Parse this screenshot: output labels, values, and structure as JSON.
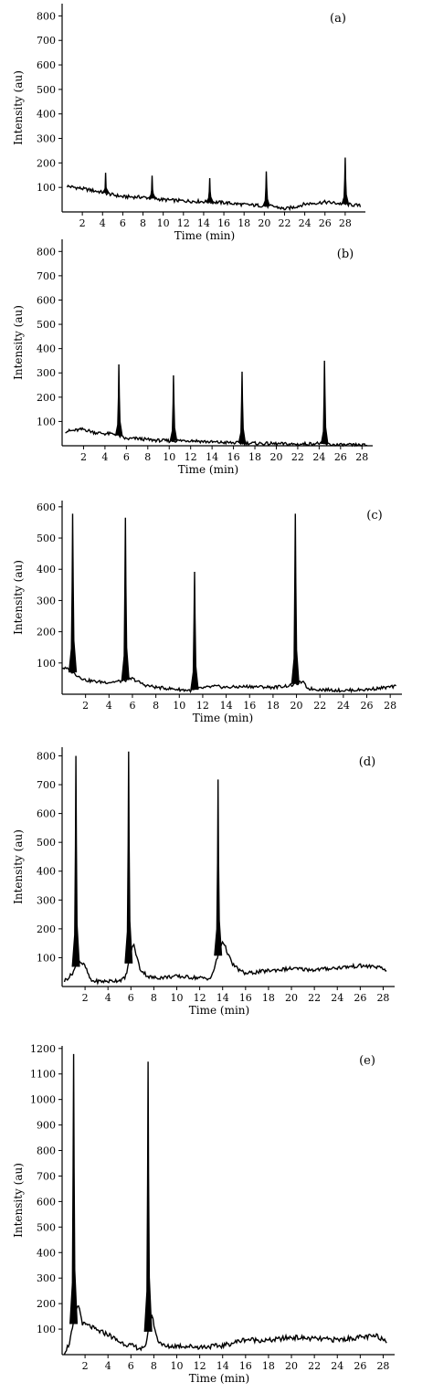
{
  "chart_data": [
    {
      "type": "line",
      "panel_label": "(a)",
      "xlabel": "Time (min)",
      "ylabel": "Intensity (au)",
      "xlim": [
        0,
        30
      ],
      "ylim": [
        0,
        850
      ],
      "xticks": [
        2,
        4,
        6,
        8,
        10,
        12,
        14,
        16,
        18,
        20,
        22,
        24,
        26,
        28
      ],
      "yticks": [
        100,
        200,
        300,
        400,
        500,
        600,
        700,
        800
      ],
      "baseline": [
        [
          0.5,
          105
        ],
        [
          2,
          95
        ],
        [
          4,
          80
        ],
        [
          5,
          70
        ],
        [
          6,
          62
        ],
        [
          8,
          60
        ],
        [
          9,
          55
        ],
        [
          10,
          50
        ],
        [
          12,
          45
        ],
        [
          14,
          42
        ],
        [
          16,
          38
        ],
        [
          18,
          30
        ],
        [
          20,
          25
        ],
        [
          21,
          22
        ],
        [
          22,
          12
        ],
        [
          23,
          20
        ],
        [
          24,
          32
        ],
        [
          26,
          40
        ],
        [
          28,
          32
        ],
        [
          29.5,
          25
        ]
      ],
      "peaks": [
        {
          "x": 4.3,
          "y": 160
        },
        {
          "x": 8.9,
          "y": 148
        },
        {
          "x": 14.6,
          "y": 138
        },
        {
          "x": 20.2,
          "y": 165
        },
        {
          "x": 28.0,
          "y": 222
        }
      ]
    },
    {
      "type": "line",
      "panel_label": "(b)",
      "xlabel": "Time (min)",
      "ylabel": "Intensity (au)",
      "xlim": [
        0,
        29
      ],
      "ylim": [
        0,
        850
      ],
      "xticks": [
        2,
        4,
        6,
        8,
        10,
        12,
        14,
        16,
        18,
        20,
        22,
        24,
        26,
        28
      ],
      "yticks": [
        100,
        200,
        300,
        400,
        500,
        600,
        700,
        800
      ],
      "baseline": [
        [
          0.3,
          60
        ],
        [
          1,
          62
        ],
        [
          2,
          68
        ],
        [
          3,
          55
        ],
        [
          4,
          50
        ],
        [
          5,
          48
        ],
        [
          6,
          28
        ],
        [
          7,
          30
        ],
        [
          8,
          25
        ],
        [
          9,
          22
        ],
        [
          10,
          20
        ],
        [
          12,
          22
        ],
        [
          14,
          15
        ],
        [
          16,
          12
        ],
        [
          18,
          10
        ],
        [
          20,
          8
        ],
        [
          22,
          6
        ],
        [
          24,
          10
        ],
        [
          25,
          5
        ],
        [
          26,
          3
        ],
        [
          28.5,
          2
        ]
      ],
      "peaks": [
        {
          "x": 5.3,
          "y": 335
        },
        {
          "x": 10.4,
          "y": 290
        },
        {
          "x": 16.8,
          "y": 305
        },
        {
          "x": 24.5,
          "y": 350
        }
      ]
    },
    {
      "type": "line",
      "panel_label": "(c)",
      "xlabel": "Time (min)",
      "ylabel": "Intensity (au)",
      "xlim": [
        0,
        29
      ],
      "ylim": [
        0,
        620
      ],
      "xticks": [
        2,
        4,
        6,
        8,
        10,
        12,
        14,
        16,
        18,
        20,
        22,
        24,
        26,
        28
      ],
      "yticks": [
        100,
        200,
        300,
        400,
        500,
        600
      ],
      "baseline": [
        [
          0,
          85
        ],
        [
          0.5,
          80
        ],
        [
          1.3,
          60
        ],
        [
          2,
          45
        ],
        [
          3,
          40
        ],
        [
          4,
          38
        ],
        [
          5,
          42
        ],
        [
          6,
          50
        ],
        [
          7,
          30
        ],
        [
          8,
          22
        ],
        [
          10,
          15
        ],
        [
          11,
          12
        ],
        [
          12,
          20
        ],
        [
          13,
          25
        ],
        [
          14,
          22
        ],
        [
          16,
          25
        ],
        [
          18,
          22
        ],
        [
          19.5,
          28
        ],
        [
          20.5,
          40
        ],
        [
          21,
          18
        ],
        [
          22,
          15
        ],
        [
          24,
          12
        ],
        [
          26,
          15
        ],
        [
          28.5,
          25
        ]
      ],
      "peaks": [
        {
          "x": 0.9,
          "y": 578
        },
        {
          "x": 5.4,
          "y": 565
        },
        {
          "x": 11.3,
          "y": 392
        },
        {
          "x": 19.9,
          "y": 578
        }
      ]
    },
    {
      "type": "line",
      "panel_label": "(d)",
      "xlabel": "Time (min)",
      "ylabel": "Intensity (au)",
      "xlim": [
        0,
        29
      ],
      "ylim": [
        0,
        830
      ],
      "xticks": [
        2,
        4,
        6,
        8,
        10,
        12,
        14,
        16,
        18,
        20,
        22,
        24,
        26,
        28
      ],
      "yticks": [
        100,
        200,
        300,
        400,
        500,
        600,
        700,
        800
      ],
      "baseline": [
        [
          0.2,
          20
        ],
        [
          0.8,
          40
        ],
        [
          1.5,
          90
        ],
        [
          2,
          70
        ],
        [
          2.5,
          20
        ],
        [
          3,
          18
        ],
        [
          4,
          18
        ],
        [
          5,
          22
        ],
        [
          5.5,
          28
        ],
        [
          6.2,
          150
        ],
        [
          6.8,
          60
        ],
        [
          7.5,
          35
        ],
        [
          8,
          30
        ],
        [
          10,
          35
        ],
        [
          12,
          30
        ],
        [
          13,
          28
        ],
        [
          14,
          160
        ],
        [
          14.8,
          80
        ],
        [
          15.5,
          55
        ],
        [
          16,
          45
        ],
        [
          18,
          55
        ],
        [
          20,
          62
        ],
        [
          22,
          58
        ],
        [
          24,
          65
        ],
        [
          26,
          72
        ],
        [
          27.5,
          68
        ],
        [
          28.3,
          55
        ]
      ],
      "peaks": [
        {
          "x": 1.2,
          "y": 800
        },
        {
          "x": 5.8,
          "y": 815
        },
        {
          "x": 13.6,
          "y": 718
        }
      ]
    },
    {
      "type": "line",
      "panel_label": "(e)",
      "xlabel": "Time (min)",
      "ylabel": "Intensity (au)",
      "xlim": [
        0,
        29
      ],
      "ylim": [
        0,
        1210
      ],
      "xticks": [
        2,
        4,
        6,
        8,
        10,
        12,
        14,
        16,
        18,
        20,
        22,
        24,
        26,
        28
      ],
      "yticks": [
        100,
        200,
        300,
        400,
        500,
        600,
        700,
        800,
        900,
        1000,
        1100,
        1200
      ],
      "baseline": [
        [
          0.2,
          10
        ],
        [
          0.6,
          40
        ],
        [
          1.4,
          200
        ],
        [
          1.8,
          120
        ],
        [
          2.5,
          110
        ],
        [
          3,
          95
        ],
        [
          4,
          80
        ],
        [
          5,
          50
        ],
        [
          6,
          35
        ],
        [
          6.8,
          25
        ],
        [
          7.2,
          20
        ],
        [
          7.8,
          160
        ],
        [
          8.3,
          60
        ],
        [
          9,
          30
        ],
        [
          10,
          35
        ],
        [
          12,
          30
        ],
        [
          14,
          35
        ],
        [
          16,
          60
        ],
        [
          18,
          55
        ],
        [
          20,
          68
        ],
        [
          22,
          62
        ],
        [
          24,
          58
        ],
        [
          26,
          68
        ],
        [
          27.5,
          72
        ],
        [
          28.3,
          55
        ]
      ],
      "peaks": [
        {
          "x": 1.0,
          "y": 1178
        },
        {
          "x": 7.5,
          "y": 1148
        }
      ]
    }
  ]
}
